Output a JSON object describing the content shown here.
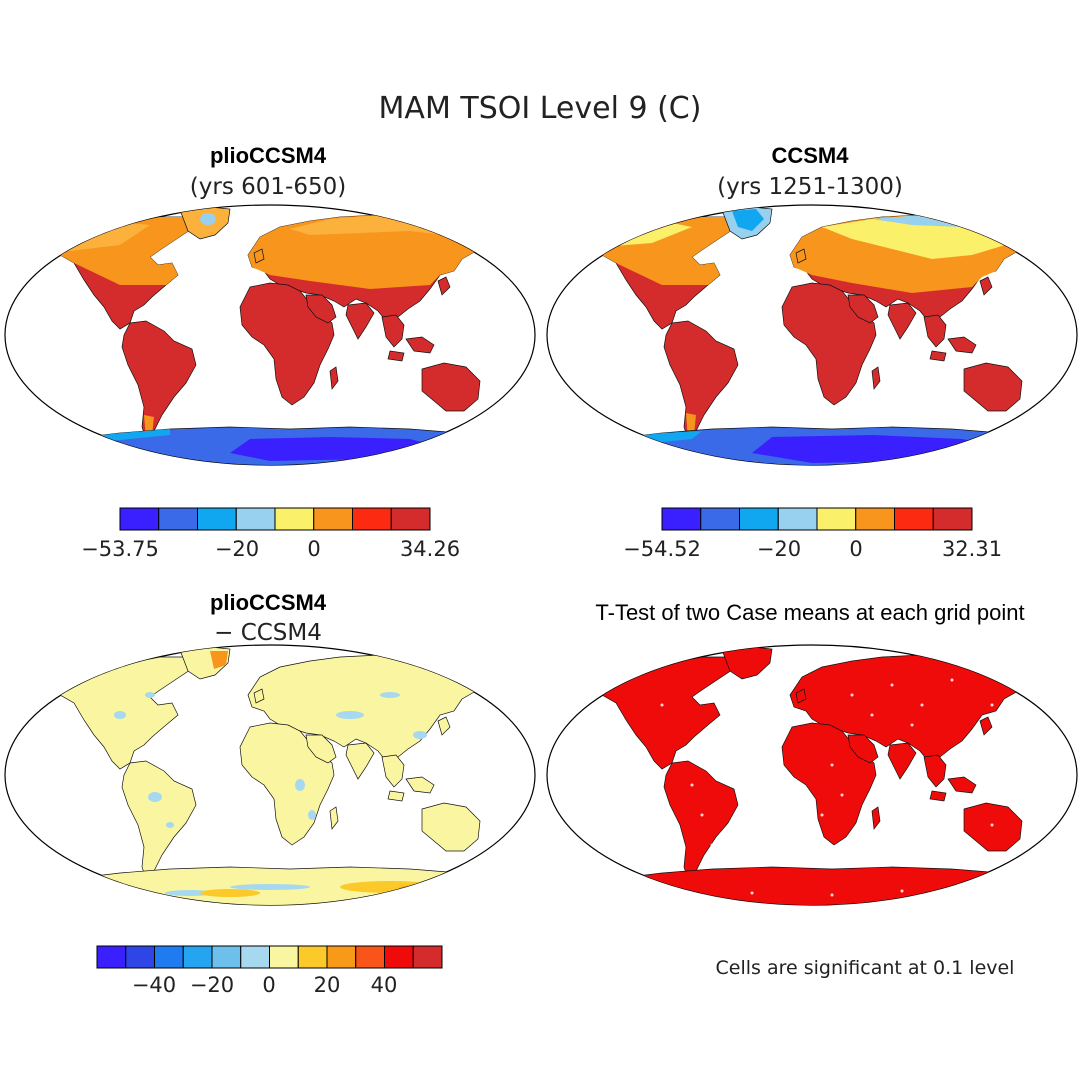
{
  "figure": {
    "title": "MAM TSOI Level 9 (C)"
  },
  "panels": [
    {
      "title": "plioCCSM4",
      "subtitle": "(yrs 601-650)",
      "colorbar": {
        "colors": [
          "#3a1fff",
          "#3b6ae8",
          "#11a6f0",
          "#98d0ef",
          "#faf06a",
          "#f8951c",
          "#fb2a10",
          "#d42c2c"
        ],
        "labels": [
          "−53.75",
          "−20",
          "0",
          "34.26"
        ]
      }
    },
    {
      "title": "CCSM4",
      "subtitle": "(yrs 1251-1300)",
      "colorbar": {
        "colors": [
          "#3a1fff",
          "#3b6ae8",
          "#11a6f0",
          "#98d0ef",
          "#faf06a",
          "#f8951c",
          "#fb2a10",
          "#d42c2c"
        ],
        "labels": [
          "−54.52",
          "−20",
          "0",
          "32.31"
        ]
      }
    },
    {
      "title": "plioCCSM4",
      "subtitle": "− CCSM4",
      "colorbar": {
        "colors": [
          "#3a1fff",
          "#2e46e6",
          "#1e7cf0",
          "#25a4f0",
          "#6dc0ec",
          "#a6d8ef",
          "#faf5a0",
          "#fcc92a",
          "#f89a18",
          "#f9541a",
          "#f00b0b",
          "#d42c2c"
        ],
        "labels": [
          "−40",
          "−20",
          "0",
          "20",
          "40"
        ]
      }
    },
    {
      "title": "T-Test of two Case means at each grid point",
      "footnote": "Cells are significant at 0.1 level"
    }
  ],
  "palette": {
    "warm_land": "#d42c2c",
    "orange": "#f8951c",
    "light_orange": "#fbb13c",
    "yellow": "#faf06a",
    "pale_yellow": "#faf5a0",
    "light_blue": "#98d0ef",
    "blue": "#3b6ae8",
    "deep_blue": "#3a1fff",
    "sig_red": "#f00b0b"
  }
}
